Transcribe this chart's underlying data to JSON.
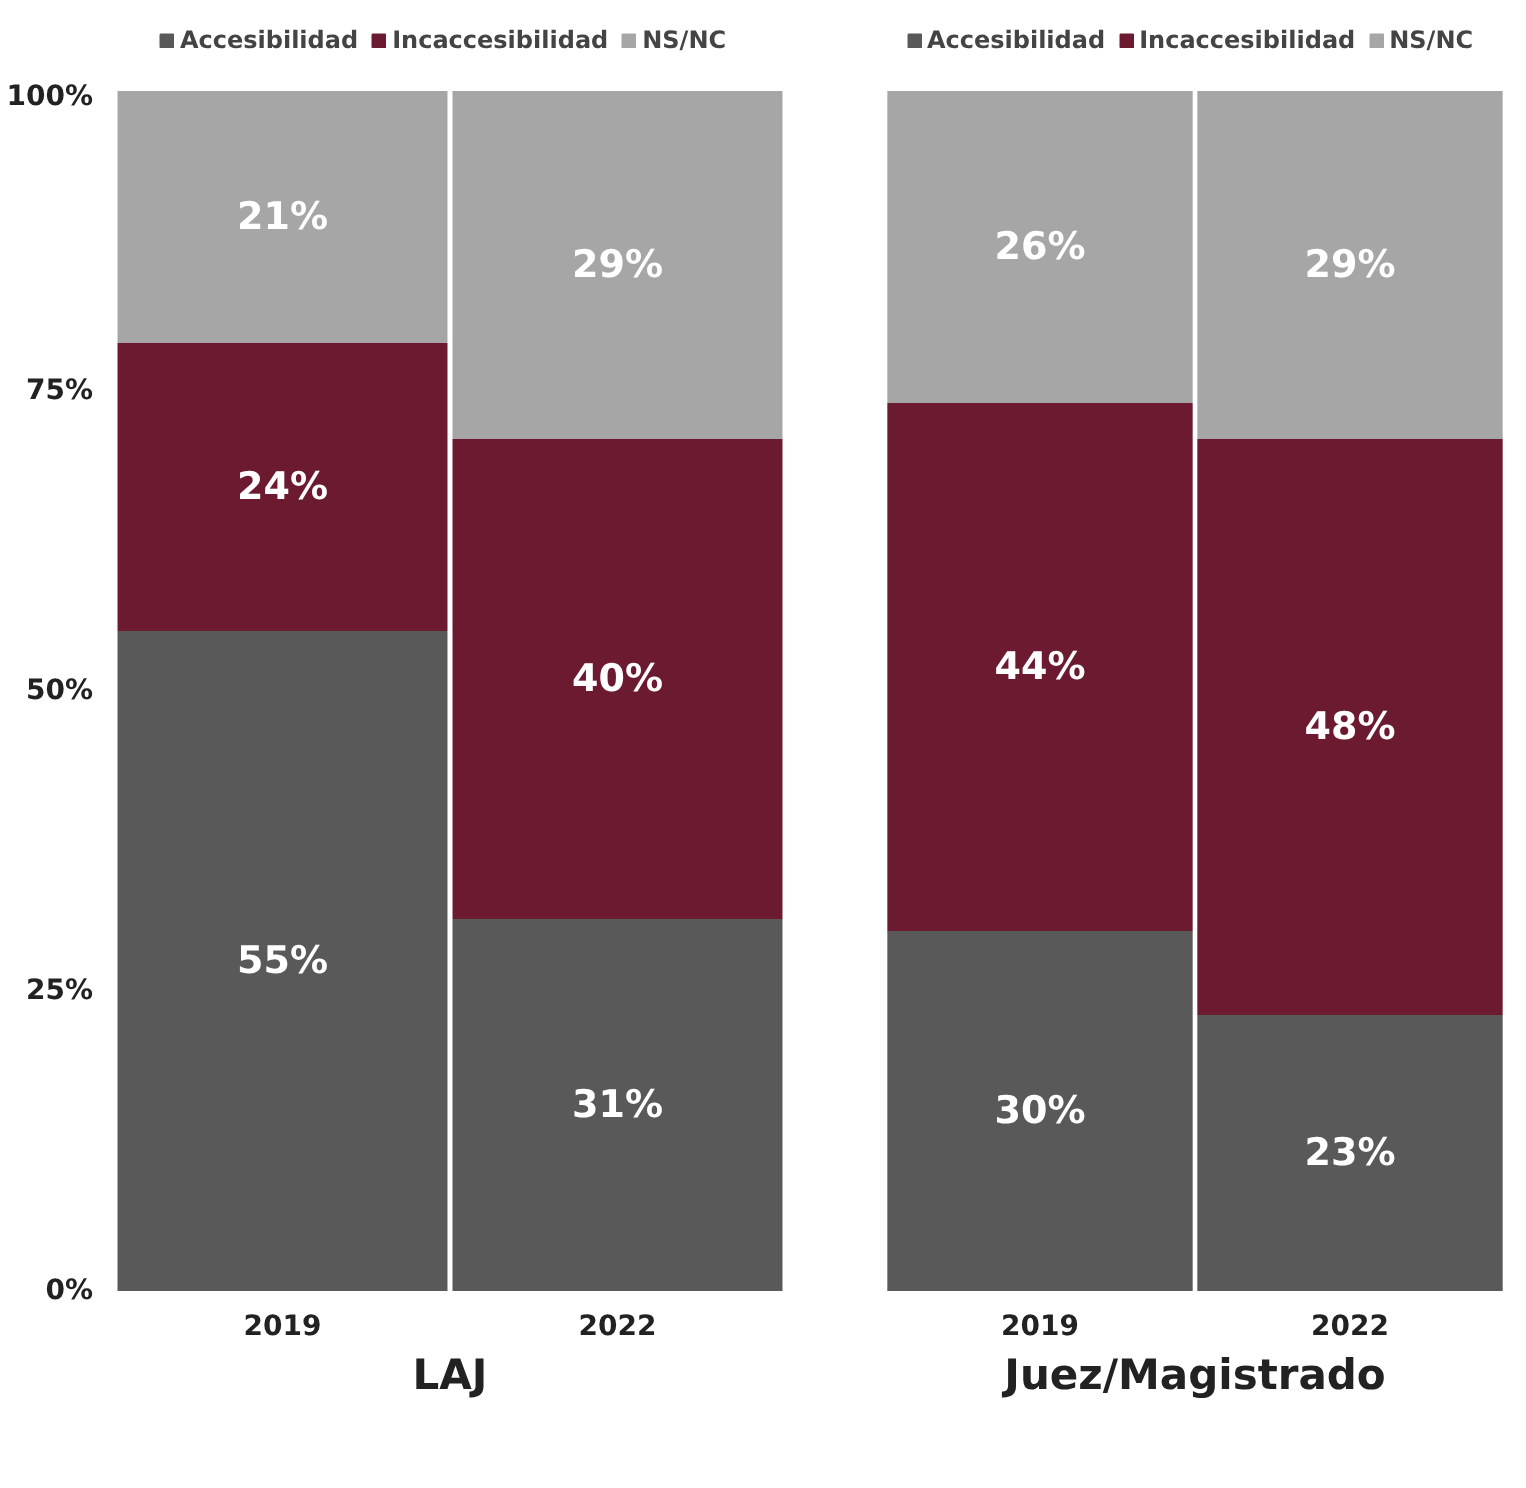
{
  "chart_data": [
    {
      "type": "bar",
      "stacked": true,
      "xlabel": "LAJ",
      "categories": [
        "2019",
        "2022"
      ],
      "ylim": [
        0,
        100
      ],
      "yticks": [
        {
          "value": 0,
          "label": "0%"
        },
        {
          "value": 25,
          "label": "25%"
        },
        {
          "value": 50,
          "label": "50%"
        },
        {
          "value": 75,
          "label": "75%"
        },
        {
          "value": 100,
          "label": "100%"
        }
      ],
      "grid": false,
      "legend": "top",
      "series": [
        {
          "name": "Accesibilidad",
          "color": "#595959",
          "values": [
            55,
            31
          ],
          "value_labels": [
            "55%",
            "31%"
          ]
        },
        {
          "name": "Incaccesibilidad",
          "color": "#6b1a30",
          "values": [
            24,
            40
          ],
          "value_labels": [
            "24%",
            "40%"
          ]
        },
        {
          "name": "NS/NC",
          "color": "#a6a6a6",
          "values": [
            21,
            29
          ],
          "value_labels": [
            "21%",
            "29%"
          ]
        }
      ]
    },
    {
      "type": "bar",
      "stacked": true,
      "xlabel": "Juez/Magistrado",
      "categories": [
        "2019",
        "2022"
      ],
      "ylim": [
        0,
        100
      ],
      "grid": false,
      "legend": "top",
      "tick_labels": "x",
      "series": [
        {
          "name": "Accesibilidad",
          "color": "#595959",
          "values": [
            30,
            23
          ],
          "value_labels": [
            "30%",
            "23%"
          ]
        },
        {
          "name": "Incaccesibilidad",
          "color": "#6b1a30",
          "values": [
            44,
            48
          ],
          "value_labels": [
            "44%",
            "48%"
          ]
        },
        {
          "name": "NS/NC",
          "color": "#a6a6a6",
          "values": [
            26,
            29
          ],
          "value_labels": [
            "26%",
            "29%"
          ]
        }
      ]
    }
  ]
}
